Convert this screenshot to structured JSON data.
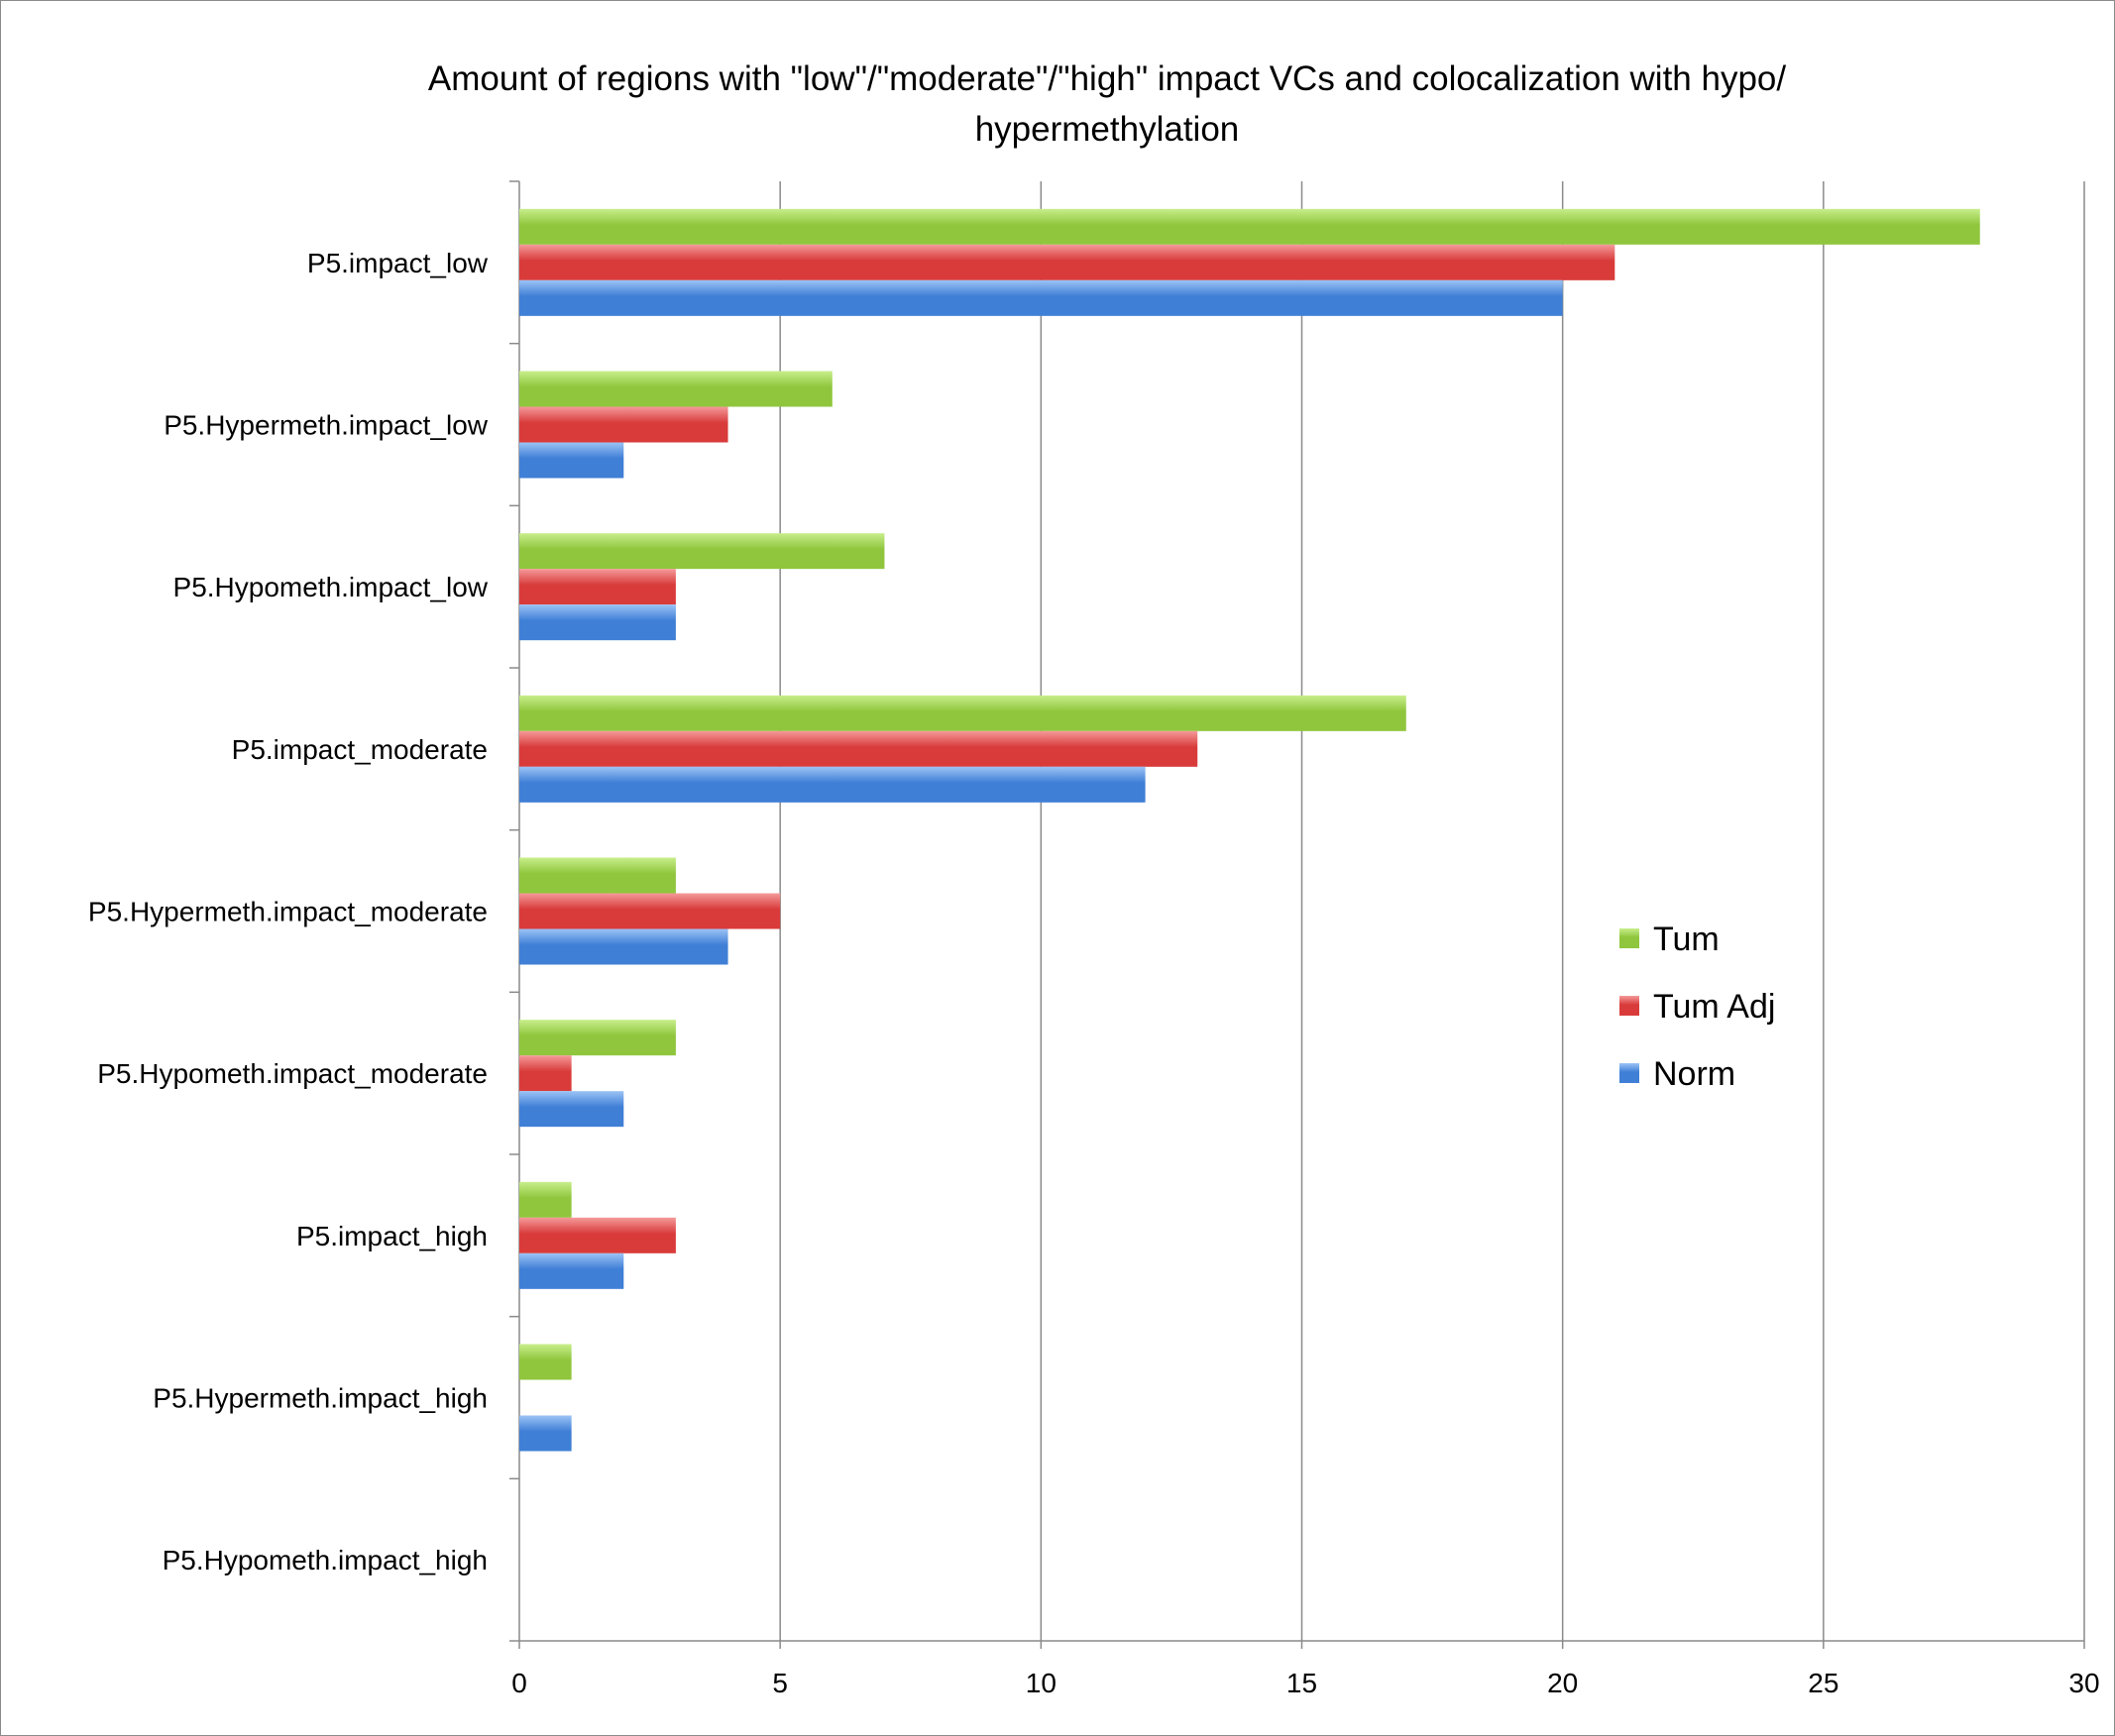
{
  "chart_data": {
    "type": "bar",
    "orientation": "horizontal",
    "title_lines": [
      "Amount of regions with \"low\"/\"moderate\"/\"high\" impact VCs and colocalization with hypo/",
      "hypermethylation"
    ],
    "categories": [
      "P5.impact_low",
      "P5.Hypermeth.impact_low",
      "P5.Hypometh.impact_low",
      "P5.impact_moderate",
      "P5.Hypermeth.impact_moderate",
      "P5.Hypometh.impact_moderate",
      "P5.impact_high",
      "P5.Hypermeth.impact_high",
      "P5.Hypometh.impact_high"
    ],
    "series": [
      {
        "name": "Tum",
        "color": "#8fc63d",
        "light": "#c8ee8c",
        "values": [
          28,
          6,
          7,
          17,
          3,
          3,
          1,
          1,
          0
        ]
      },
      {
        "name": "Tum Adj",
        "color": "#d93b3b",
        "light": "#f59a9a",
        "values": [
          21,
          4,
          3,
          13,
          5,
          1,
          3,
          0,
          0
        ]
      },
      {
        "name": "Norm",
        "color": "#3f7fd6",
        "light": "#9cc3f5",
        "values": [
          20,
          2,
          3,
          12,
          4,
          2,
          2,
          1,
          0
        ]
      }
    ],
    "xlim": [
      0,
      30
    ],
    "xticks": [
      0,
      5,
      10,
      15,
      20,
      25,
      30
    ],
    "xtick_labels": [
      "0",
      "5",
      "10",
      "15",
      "20",
      "25",
      "30"
    ],
    "grid": true,
    "legend_position": "right"
  }
}
